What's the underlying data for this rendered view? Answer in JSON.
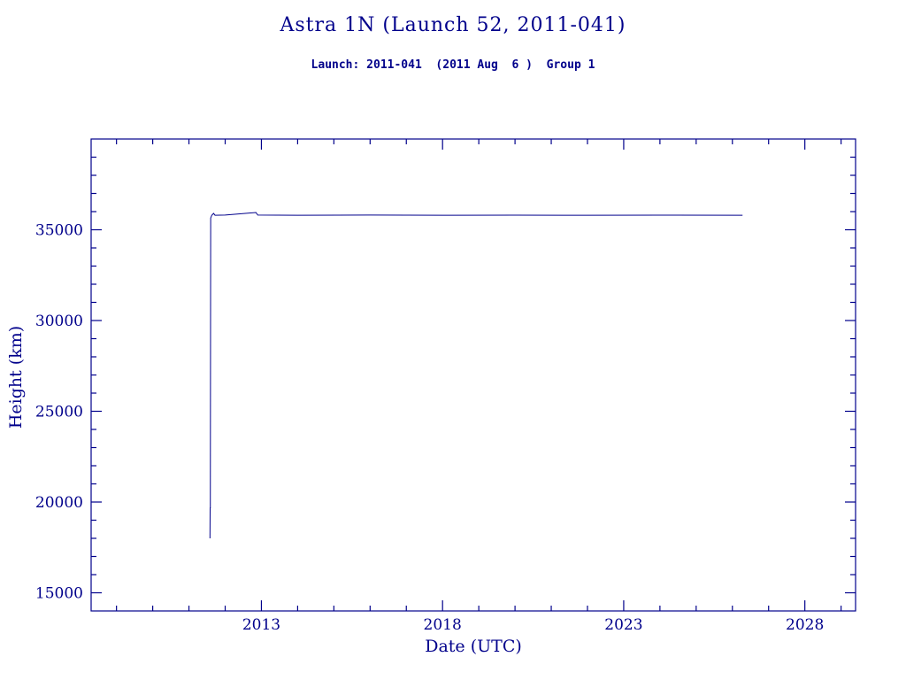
{
  "page": {
    "background": "#ffffff",
    "accent": "#00008b"
  },
  "chart_data": {
    "type": "line",
    "title": "Astra 1N (Launch 52, 2011-041)",
    "subtitle": "Launch: 2011-041  (2011 Aug  6 )  Group 1",
    "xlabel": "Date (UTC)",
    "ylabel": "Height (km)",
    "xlim": [
      2008.3,
      2029.4
    ],
    "ylim": [
      14000,
      40000
    ],
    "x_major_ticks": [
      2013,
      2018,
      2023,
      2028
    ],
    "x_minor_step": 1,
    "y_major_ticks": [
      15000,
      20000,
      25000,
      30000,
      35000
    ],
    "y_minor_step": 1000,
    "grid": false,
    "legend": "none",
    "line_color": "#00008b",
    "frame_color": "#00008b",
    "series": [
      {
        "name": "height-km",
        "points": [
          [
            2011.58,
            18000
          ],
          [
            2011.585,
            19700
          ],
          [
            2011.59,
            19650
          ],
          [
            2011.6,
            35650
          ],
          [
            2011.63,
            35800
          ],
          [
            2011.68,
            35900
          ],
          [
            2011.72,
            35800
          ],
          [
            2012.0,
            35810
          ],
          [
            2012.85,
            35950
          ],
          [
            2012.9,
            35810
          ],
          [
            2014.0,
            35800
          ],
          [
            2016.0,
            35810
          ],
          [
            2018.0,
            35800
          ],
          [
            2020.0,
            35805
          ],
          [
            2022.0,
            35800
          ],
          [
            2024.0,
            35805
          ],
          [
            2026.28,
            35800
          ]
        ]
      }
    ]
  }
}
